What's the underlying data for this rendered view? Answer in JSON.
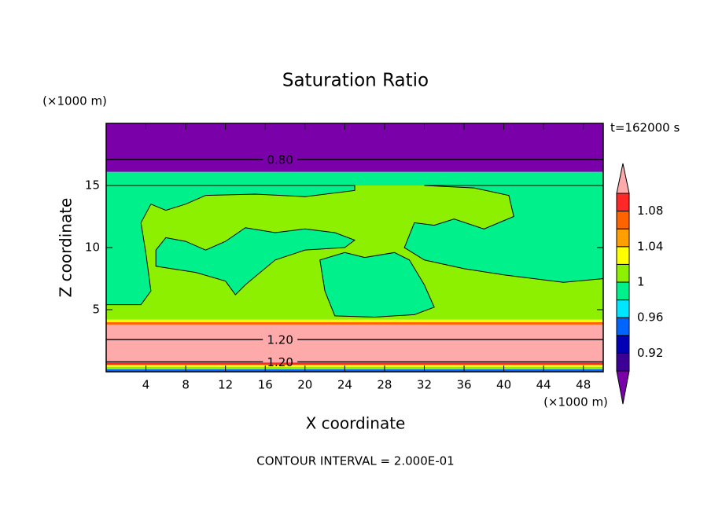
{
  "chart_data": {
    "type": "contour",
    "title": "Saturation Ratio",
    "x_label": "X coordinate",
    "y_label": "Z coordinate",
    "x_units": "(×1000 m)",
    "y_units": "(×1000 m)",
    "time_label": "t=162000 s",
    "footer": "CONTOUR INTERVAL = 2.000E-01",
    "xlim": [
      0,
      50
    ],
    "xticks": [
      4,
      8,
      12,
      16,
      20,
      24,
      28,
      32,
      36,
      40,
      44,
      48
    ],
    "ylim": [
      0,
      20
    ],
    "yticks": [
      5,
      10,
      15
    ],
    "levels": [
      0.9,
      0.92,
      0.94,
      0.96,
      0.98,
      1,
      1.02,
      1.04,
      1.06,
      1.08,
      1.1
    ],
    "colors": [
      "#7a00aa",
      "#3c0096",
      "#0000b4",
      "#0064ff",
      "#00e6ff",
      "#00f08c",
      "#8cf000",
      "#ffff00",
      "#ffa000",
      "#ff6400",
      "#ff2828",
      "#ffaaaa"
    ],
    "colorbar_ticks": [
      0.92,
      0.96,
      1,
      1.04,
      1.08
    ],
    "layers": [
      {
        "z": [
          0,
          0.2
        ],
        "value": 0.95
      },
      {
        "z": [
          0.2,
          0.4
        ],
        "value": 1.01
      },
      {
        "z": [
          0.4,
          0.55
        ],
        "value": 1.03
      },
      {
        "z": [
          0.55,
          0.75
        ],
        "value": 1.09
      },
      {
        "z": [
          0.75,
          3.8
        ],
        "value": 1.2
      },
      {
        "z": [
          3.8,
          4.0
        ],
        "value": 1.07
      },
      {
        "z": [
          4.0,
          4.2
        ],
        "value": 1.03
      },
      {
        "z": [
          4.2,
          15
        ],
        "value": 1.01
      },
      {
        "z": [
          15,
          16.1
        ],
        "value": 0.99
      },
      {
        "z": [
          16.1,
          20
        ],
        "value": 0.8
      }
    ],
    "regions": [
      {
        "value": 0.99,
        "x": [
          0,
          25,
          25,
          20,
          15,
          10,
          8,
          6,
          4.5,
          3.5,
          4,
          4.5,
          3.5,
          0
        ],
        "z": [
          15,
          15,
          14.6,
          14.1,
          14.3,
          14.2,
          13.5,
          13,
          13.5,
          12,
          9.5,
          6.5,
          5.4,
          5.4
        ]
      },
      {
        "value": 0.99,
        "x": [
          5,
          9,
          12,
          13,
          14,
          17,
          20,
          24,
          25,
          23,
          20,
          17,
          14,
          12,
          10,
          8,
          6,
          5
        ],
        "z": [
          8.5,
          8,
          7.3,
          6.2,
          7,
          9,
          9.8,
          10,
          10.6,
          11.2,
          11.5,
          11.2,
          11.6,
          10.5,
          9.8,
          10.5,
          10.8,
          9.8
        ]
      },
      {
        "value": 0.99,
        "x": [
          21.5,
          22,
          23,
          27,
          31,
          33,
          32,
          30.5,
          29,
          26,
          24
        ],
        "z": [
          9,
          6.5,
          4.5,
          4.4,
          4.6,
          5.2,
          7,
          9,
          9.6,
          9.2,
          9.6
        ]
      },
      {
        "value": 0.99,
        "x": [
          32,
          50,
          50,
          46,
          40,
          36,
          32,
          30,
          31,
          33,
          35,
          38,
          41,
          40.5,
          37
        ],
        "z": [
          15,
          15,
          7.5,
          7.2,
          7.8,
          8.3,
          9,
          10,
          12,
          11.8,
          12.3,
          11.5,
          12.5,
          14.2,
          14.8
        ]
      }
    ],
    "contour_lines": [
      {
        "level": {
          "value": 0.8,
          "label": "0.80"
        },
        "z": 17.1
      },
      {
        "level": {
          "value": 1.2,
          "label": "1.20"
        },
        "z": 2.6
      },
      {
        "level": {
          "value": 1.2,
          "label": "1.20"
        },
        "z": 0.8
      }
    ]
  }
}
